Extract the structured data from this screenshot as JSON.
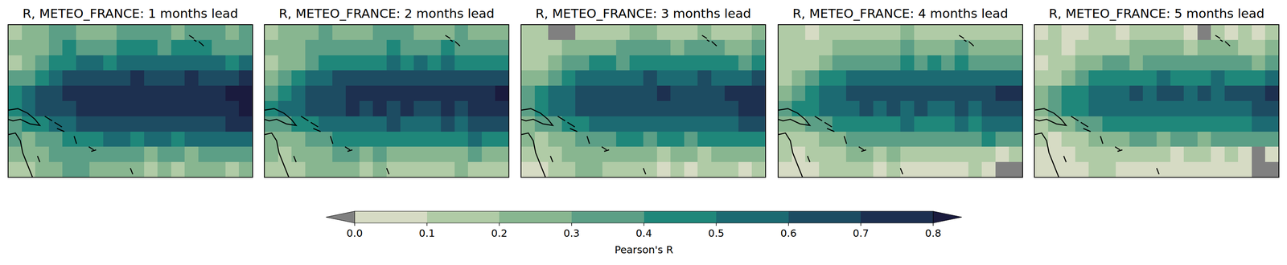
{
  "chart_data": [
    {
      "type": "heatmap",
      "title": "R, METEO_FRANCE: 1 months lead",
      "cells": [
        [
          0.15,
          0.2,
          0.25,
          0.3,
          0.3,
          0.25,
          0.2,
          0.25,
          0.3,
          0.35,
          0.35,
          0.3,
          0.25,
          0.3,
          0.35,
          0.3,
          0.25,
          0.3
        ],
        [
          0.2,
          0.2,
          0.25,
          0.35,
          0.4,
          0.35,
          0.3,
          0.35,
          0.4,
          0.45,
          0.4,
          0.35,
          0.4,
          0.45,
          0.4,
          0.35,
          0.3,
          0.35
        ],
        [
          0.15,
          0.2,
          0.3,
          0.4,
          0.45,
          0.5,
          0.5,
          0.45,
          0.5,
          0.55,
          0.5,
          0.55,
          0.5,
          0.55,
          0.5,
          0.5,
          0.45,
          0.5
        ],
        [
          0.3,
          0.35,
          0.45,
          0.55,
          0.6,
          0.65,
          0.65,
          0.65,
          0.65,
          0.7,
          0.65,
          0.65,
          0.65,
          0.7,
          0.65,
          0.65,
          0.65,
          0.7
        ],
        [
          0.4,
          0.5,
          0.6,
          0.65,
          0.7,
          0.72,
          0.75,
          0.75,
          0.72,
          0.75,
          0.78,
          0.72,
          0.75,
          0.72,
          0.75,
          0.78,
          0.82,
          0.85
        ],
        [
          0.45,
          0.55,
          0.6,
          0.65,
          0.68,
          0.7,
          0.72,
          0.7,
          0.72,
          0.7,
          0.72,
          0.7,
          0.7,
          0.72,
          0.7,
          0.75,
          0.78,
          0.8
        ],
        [
          0.35,
          0.4,
          0.45,
          0.5,
          0.55,
          0.6,
          0.6,
          0.62,
          0.6,
          0.65,
          0.62,
          0.6,
          0.62,
          0.65,
          0.62,
          0.65,
          0.7,
          0.7
        ],
        [
          0.3,
          0.25,
          0.3,
          0.35,
          0.4,
          0.45,
          0.45,
          0.5,
          0.5,
          0.45,
          0.5,
          0.5,
          0.45,
          0.5,
          0.5,
          0.55,
          0.5,
          0.5
        ],
        [
          0.25,
          0.2,
          0.25,
          0.3,
          0.3,
          0.35,
          0.35,
          0.3,
          0.35,
          0.3,
          0.25,
          0.3,
          0.3,
          0.25,
          0.3,
          0.35,
          0.3,
          0.3
        ],
        [
          0.15,
          0.1,
          0.2,
          0.25,
          0.3,
          0.3,
          0.25,
          0.2,
          0.25,
          0.2,
          0.15,
          0.2,
          0.15,
          0.2,
          0.25,
          0.2,
          0.15,
          0.2
        ]
      ]
    },
    {
      "type": "heatmap",
      "title": "R, METEO_FRANCE: 2 months lead",
      "cells": [
        [
          0.15,
          0.2,
          0.2,
          0.25,
          0.3,
          0.25,
          0.2,
          0.25,
          0.3,
          0.3,
          0.3,
          0.25,
          0.2,
          0.25,
          0.3,
          0.25,
          0.2,
          0.25
        ],
        [
          0.2,
          0.2,
          0.25,
          0.3,
          0.35,
          0.3,
          0.3,
          0.35,
          0.35,
          0.4,
          0.35,
          0.3,
          0.35,
          0.4,
          0.35,
          0.3,
          0.3,
          0.3
        ],
        [
          0.15,
          0.2,
          0.25,
          0.35,
          0.4,
          0.45,
          0.45,
          0.4,
          0.45,
          0.5,
          0.45,
          0.5,
          0.45,
          0.5,
          0.45,
          0.45,
          0.4,
          0.45
        ],
        [
          0.25,
          0.3,
          0.4,
          0.5,
          0.55,
          0.6,
          0.62,
          0.6,
          0.62,
          0.65,
          0.62,
          0.6,
          0.62,
          0.65,
          0.6,
          0.62,
          0.6,
          0.65
        ],
        [
          0.35,
          0.45,
          0.55,
          0.6,
          0.65,
          0.68,
          0.7,
          0.72,
          0.7,
          0.72,
          0.75,
          0.7,
          0.72,
          0.7,
          0.72,
          0.75,
          0.78,
          0.8
        ],
        [
          0.4,
          0.5,
          0.55,
          0.6,
          0.65,
          0.68,
          0.7,
          0.68,
          0.7,
          0.68,
          0.7,
          0.68,
          0.68,
          0.7,
          0.68,
          0.72,
          0.75,
          0.75
        ],
        [
          0.3,
          0.35,
          0.4,
          0.45,
          0.5,
          0.55,
          0.55,
          0.58,
          0.55,
          0.6,
          0.58,
          0.55,
          0.58,
          0.6,
          0.58,
          0.6,
          0.65,
          0.65
        ],
        [
          0.25,
          0.2,
          0.25,
          0.3,
          0.35,
          0.4,
          0.4,
          0.45,
          0.45,
          0.4,
          0.45,
          0.45,
          0.4,
          0.45,
          0.45,
          0.5,
          0.45,
          0.45
        ],
        [
          0.2,
          0.15,
          0.2,
          0.25,
          0.25,
          0.3,
          0.3,
          0.25,
          0.3,
          0.25,
          0.2,
          0.25,
          0.25,
          0.2,
          0.25,
          0.3,
          0.25,
          0.25
        ],
        [
          0.1,
          0.1,
          0.15,
          0.2,
          0.25,
          0.25,
          0.2,
          0.15,
          0.2,
          0.15,
          0.1,
          0.15,
          0.1,
          0.15,
          0.2,
          0.15,
          0.1,
          0.15
        ]
      ]
    },
    {
      "type": "heatmap",
      "title": "R, METEO_FRANCE: 3 months lead",
      "cells": [
        [
          0.1,
          0.15,
          -0.05,
          -0.02,
          0.1,
          0.15,
          0.1,
          0.15,
          0.2,
          0.2,
          0.15,
          0.1,
          0.15,
          0.2,
          0.15,
          0.1,
          0.15,
          0.2
        ],
        [
          0.15,
          0.15,
          0.1,
          0.2,
          0.25,
          0.2,
          0.25,
          0.3,
          0.3,
          0.35,
          0.3,
          0.25,
          0.3,
          0.35,
          0.3,
          0.25,
          0.25,
          0.3
        ],
        [
          0.1,
          0.15,
          0.2,
          0.3,
          0.35,
          0.4,
          0.4,
          0.35,
          0.4,
          0.45,
          0.4,
          0.45,
          0.4,
          0.45,
          0.4,
          0.4,
          0.35,
          0.4
        ],
        [
          0.2,
          0.25,
          0.35,
          0.45,
          0.5,
          0.55,
          0.58,
          0.55,
          0.58,
          0.6,
          0.58,
          0.55,
          0.58,
          0.6,
          0.55,
          0.58,
          0.55,
          0.6
        ],
        [
          0.3,
          0.4,
          0.5,
          0.55,
          0.6,
          0.65,
          0.65,
          0.68,
          0.65,
          0.68,
          0.7,
          0.65,
          0.68,
          0.65,
          0.68,
          0.7,
          0.75,
          0.78
        ],
        [
          0.35,
          0.45,
          0.5,
          0.55,
          0.6,
          0.62,
          0.65,
          0.62,
          0.65,
          0.62,
          0.65,
          0.62,
          0.62,
          0.65,
          0.62,
          0.68,
          0.7,
          0.7
        ],
        [
          0.25,
          0.3,
          0.35,
          0.4,
          0.45,
          0.5,
          0.5,
          0.52,
          0.5,
          0.55,
          0.52,
          0.5,
          0.52,
          0.55,
          0.52,
          0.55,
          0.6,
          0.6
        ],
        [
          0.2,
          0.15,
          0.2,
          0.25,
          0.3,
          0.35,
          0.35,
          0.4,
          0.4,
          0.35,
          0.4,
          0.4,
          0.35,
          0.4,
          0.4,
          0.45,
          0.4,
          0.4
        ],
        [
          0.15,
          0.1,
          0.15,
          0.2,
          0.2,
          0.25,
          0.25,
          0.2,
          0.25,
          0.2,
          0.15,
          0.2,
          0.2,
          0.15,
          0.2,
          0.25,
          0.2,
          0.2
        ],
        [
          0.05,
          0.05,
          0.1,
          0.15,
          0.2,
          0.2,
          0.15,
          0.1,
          0.15,
          0.1,
          0.05,
          0.1,
          0.05,
          0.1,
          0.15,
          0.1,
          0.05,
          0.1
        ]
      ]
    },
    {
      "type": "heatmap",
      "title": "R, METEO_FRANCE: 4 months lead",
      "cells": [
        [
          0.1,
          0.1,
          0.05,
          0.1,
          0.1,
          0.15,
          0.1,
          0.1,
          0.15,
          0.2,
          0.15,
          0.1,
          0.1,
          0.15,
          0.1,
          0.1,
          0.1,
          0.15
        ],
        [
          0.1,
          0.15,
          0.1,
          0.15,
          0.2,
          0.2,
          0.2,
          0.25,
          0.25,
          0.3,
          0.25,
          0.2,
          0.25,
          0.3,
          0.25,
          0.2,
          0.2,
          0.25
        ],
        [
          0.1,
          0.1,
          0.15,
          0.25,
          0.3,
          0.35,
          0.35,
          0.3,
          0.35,
          0.4,
          0.35,
          0.4,
          0.35,
          0.4,
          0.35,
          0.35,
          0.3,
          0.35
        ],
        [
          0.15,
          0.2,
          0.3,
          0.4,
          0.45,
          0.5,
          0.52,
          0.5,
          0.52,
          0.55,
          0.52,
          0.5,
          0.52,
          0.55,
          0.5,
          0.52,
          0.5,
          0.55
        ],
        [
          0.25,
          0.35,
          0.45,
          0.5,
          0.55,
          0.6,
          0.62,
          0.65,
          0.62,
          0.65,
          0.65,
          0.62,
          0.65,
          0.62,
          0.65,
          0.68,
          0.72,
          0.75
        ],
        [
          0.3,
          0.4,
          0.45,
          0.5,
          0.55,
          0.58,
          0.6,
          0.58,
          0.6,
          0.58,
          0.6,
          0.58,
          0.58,
          0.6,
          0.58,
          0.62,
          0.65,
          0.65
        ],
        [
          0.2,
          0.25,
          0.3,
          0.35,
          0.4,
          0.45,
          0.45,
          0.48,
          0.45,
          0.5,
          0.48,
          0.45,
          0.48,
          0.5,
          0.48,
          0.5,
          0.55,
          0.55
        ],
        [
          0.15,
          0.1,
          0.15,
          0.2,
          0.25,
          0.3,
          0.3,
          0.35,
          0.35,
          0.3,
          0.35,
          0.35,
          0.3,
          0.35,
          0.35,
          0.4,
          0.35,
          0.35
        ],
        [
          0.1,
          0.05,
          0.1,
          0.15,
          0.15,
          0.2,
          0.2,
          0.15,
          0.2,
          0.15,
          0.1,
          0.15,
          0.15,
          0.1,
          0.15,
          0.1,
          0.05,
          0.1
        ],
        [
          0.05,
          0.05,
          0.05,
          0.1,
          0.15,
          0.15,
          0.1,
          0.05,
          0.1,
          0.05,
          0.05,
          0.05,
          0.05,
          0.05,
          0.1,
          0.05,
          -0.05,
          -0.05
        ]
      ]
    },
    {
      "type": "heatmap",
      "title": "R, METEO_FRANCE: 5 months lead",
      "cells": [
        [
          0.05,
          0.1,
          0.05,
          0.05,
          0.1,
          0.1,
          0.05,
          0.1,
          0.1,
          0.15,
          0.1,
          0.05,
          -0.03,
          0.1,
          0.05,
          0.1,
          0.05,
          0.1
        ],
        [
          0.1,
          0.1,
          0.05,
          0.1,
          0.15,
          0.15,
          0.15,
          0.2,
          0.2,
          0.25,
          0.2,
          0.15,
          0.2,
          0.25,
          0.2,
          0.15,
          0.15,
          0.2
        ],
        [
          0.05,
          0.1,
          0.1,
          0.2,
          0.25,
          0.3,
          0.3,
          0.25,
          0.3,
          0.35,
          0.3,
          0.35,
          0.3,
          0.35,
          0.3,
          0.3,
          0.25,
          0.3
        ],
        [
          0.1,
          0.15,
          0.25,
          0.35,
          0.4,
          0.45,
          0.48,
          0.45,
          0.48,
          0.5,
          0.48,
          0.45,
          0.48,
          0.5,
          0.45,
          0.48,
          0.45,
          0.5
        ],
        [
          0.2,
          0.3,
          0.4,
          0.45,
          0.5,
          0.55,
          0.58,
          0.6,
          0.58,
          0.6,
          0.6,
          0.58,
          0.6,
          0.58,
          0.6,
          0.62,
          0.68,
          0.72
        ],
        [
          0.25,
          0.35,
          0.4,
          0.45,
          0.5,
          0.52,
          0.55,
          0.52,
          0.55,
          0.52,
          0.55,
          0.52,
          0.52,
          0.55,
          0.52,
          0.58,
          0.6,
          0.62
        ],
        [
          0.15,
          0.2,
          0.25,
          0.3,
          0.35,
          0.4,
          0.4,
          0.42,
          0.4,
          0.45,
          0.42,
          0.4,
          0.42,
          0.45,
          0.42,
          0.45,
          0.5,
          0.5
        ],
        [
          0.1,
          0.05,
          0.1,
          0.15,
          0.2,
          0.25,
          0.25,
          0.3,
          0.3,
          0.25,
          0.3,
          0.3,
          0.25,
          0.3,
          0.3,
          0.35,
          0.3,
          0.3
        ],
        [
          0.05,
          0.05,
          0.05,
          0.1,
          0.1,
          0.15,
          0.15,
          0.1,
          0.15,
          0.1,
          0.05,
          0.1,
          0.1,
          0.05,
          0.1,
          0.05,
          -0.02,
          0.05
        ],
        [
          0.05,
          0.0,
          0.05,
          0.05,
          0.1,
          0.1,
          0.05,
          0.05,
          0.05,
          0.05,
          0.05,
          0.05,
          0.05,
          0.05,
          0.05,
          0.05,
          -0.05,
          -0.05
        ]
      ]
    }
  ],
  "colorbar": {
    "label": "Pearson's R",
    "range": [
      0,
      0.8
    ],
    "ticks": [
      {
        "value": 0,
        "label": "0.0"
      },
      0.1,
      0.2,
      0.3,
      0.4,
      0.5,
      0.6,
      0.7,
      0.8
    ],
    "colors": [
      "#808080",
      "#d6dbc4",
      "#b0cba6",
      "#88b690",
      "#5c9f86",
      "#1f877a",
      "#1c6a72",
      "#1d4c62",
      "#1d3050",
      "#1a1b3e"
    ]
  }
}
